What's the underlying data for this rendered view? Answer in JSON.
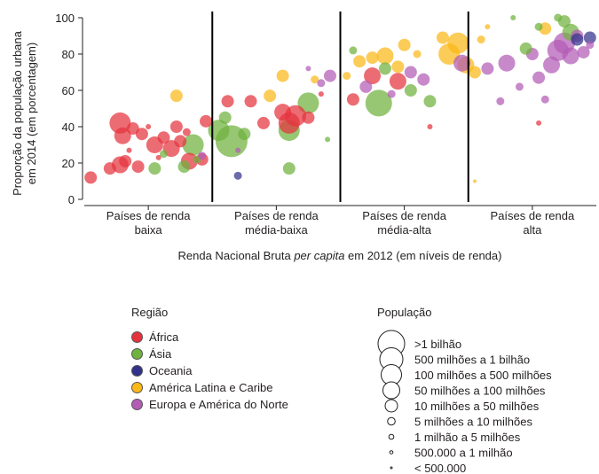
{
  "chart_data": {
    "type": "scatter",
    "ylabel_line1": "Proporção da população urbana",
    "ylabel_line2": "em 2014 (em porcentagem)",
    "xlabel_parts": [
      "Renda Nacional Bruta ",
      "per capita",
      " em 2012 (em níveis de renda)"
    ],
    "ylim": [
      0,
      100
    ],
    "yticks": [
      "0",
      "20",
      "40",
      "60",
      "80",
      "100"
    ],
    "xlim": [
      0,
      4
    ],
    "income_groups": [
      {
        "line1": "Países de renda",
        "line2": "baixa",
        "center": 0.5
      },
      {
        "line1": "Países de renda",
        "line2": "média-baixa",
        "center": 1.5
      },
      {
        "line1": "Países de renda",
        "line2": "média-alta",
        "center": 2.5
      },
      {
        "line1": "Países de renda",
        "line2": "alta",
        "center": 3.5
      }
    ],
    "dividers": [
      1,
      2,
      3
    ],
    "region_title": "Região",
    "regions": [
      {
        "key": "africa",
        "label": "África",
        "color": "#e5333d"
      },
      {
        "key": "asia",
        "label": "Ásia",
        "color": "#6fb23d"
      },
      {
        "key": "oceania",
        "label": "Oceania",
        "color": "#32328c"
      },
      {
        "key": "latam",
        "label": "América Latina e Caribe",
        "color": "#fbb817"
      },
      {
        "key": "europe",
        "label": "Europa e América do Norte",
        "color": "#b35cb5"
      }
    ],
    "population_title": "População",
    "population_classes": [
      {
        "label": ">1 bilhão",
        "size": 9
      },
      {
        "label": "500 milhões a 1 bilhão",
        "size": 8
      },
      {
        "label": "100 milhões a 500 milhões",
        "size": 7
      },
      {
        "label": "50 milhões a 100 milhões",
        "size": 6
      },
      {
        "label": "10 milhões a 50 milhões",
        "size": 5
      },
      {
        "label": "5 milhões a 10 milhões",
        "size": 4
      },
      {
        "label": "1 milhão a 5 milhões",
        "size": 3
      },
      {
        "label": "500.000 a 1 milhão",
        "size": 2
      },
      {
        "label": "< 500.000",
        "size": 1
      }
    ],
    "points": [
      {
        "r": "africa",
        "x": 0.05,
        "y": 12,
        "s": 5
      },
      {
        "r": "africa",
        "x": 0.2,
        "y": 17,
        "s": 5
      },
      {
        "r": "africa",
        "x": 0.28,
        "y": 19,
        "s": 6
      },
      {
        "r": "africa",
        "x": 0.32,
        "y": 21,
        "s": 5
      },
      {
        "r": "africa",
        "x": 0.3,
        "y": 35,
        "s": 6
      },
      {
        "r": "africa",
        "x": 0.38,
        "y": 39,
        "s": 5
      },
      {
        "r": "africa",
        "x": 0.45,
        "y": 36,
        "s": 5
      },
      {
        "r": "africa",
        "x": 0.28,
        "y": 42,
        "s": 7
      },
      {
        "r": "africa",
        "x": 0.55,
        "y": 30,
        "s": 6
      },
      {
        "r": "africa",
        "x": 0.62,
        "y": 34,
        "s": 5
      },
      {
        "r": "africa",
        "x": 0.68,
        "y": 28,
        "s": 6
      },
      {
        "r": "africa",
        "x": 0.72,
        "y": 40,
        "s": 5
      },
      {
        "r": "africa",
        "x": 0.75,
        "y": 32,
        "s": 5
      },
      {
        "r": "africa",
        "x": 0.82,
        "y": 21,
        "s": 6
      },
      {
        "r": "africa",
        "x": 0.92,
        "y": 22,
        "s": 5
      },
      {
        "r": "africa",
        "x": 0.95,
        "y": 43,
        "s": 5
      },
      {
        "r": "africa",
        "x": 0.5,
        "y": 40,
        "s": 3
      },
      {
        "r": "africa",
        "x": 0.8,
        "y": 37,
        "s": 4
      },
      {
        "r": "africa",
        "x": 0.42,
        "y": 18,
        "s": 5
      },
      {
        "r": "africa",
        "x": 0.58,
        "y": 23,
        "s": 3
      },
      {
        "r": "africa",
        "x": 0.35,
        "y": 27,
        "s": 3
      },
      {
        "r": "asia",
        "x": 0.55,
        "y": 17,
        "s": 5
      },
      {
        "r": "asia",
        "x": 0.78,
        "y": 18,
        "s": 5
      },
      {
        "r": "asia",
        "x": 0.85,
        "y": 30,
        "s": 7
      },
      {
        "r": "asia",
        "x": 0.88,
        "y": 22,
        "s": 4
      },
      {
        "r": "asia",
        "x": 0.62,
        "y": 25,
        "s": 4
      },
      {
        "r": "latam",
        "x": 0.72,
        "y": 57,
        "s": 5
      },
      {
        "r": "europe",
        "x": 0.92,
        "y": 24,
        "s": 4
      },
      {
        "r": "asia",
        "x": 1.15,
        "y": 32,
        "s": 9
      },
      {
        "r": "asia",
        "x": 1.05,
        "y": 38,
        "s": 7
      },
      {
        "r": "asia",
        "x": 1.25,
        "y": 36,
        "s": 5
      },
      {
        "r": "asia",
        "x": 1.1,
        "y": 45,
        "s": 5
      },
      {
        "r": "asia",
        "x": 1.6,
        "y": 38,
        "s": 7
      },
      {
        "r": "asia",
        "x": 1.75,
        "y": 53,
        "s": 7
      },
      {
        "r": "asia",
        "x": 1.6,
        "y": 17,
        "s": 5
      },
      {
        "r": "asia",
        "x": 1.9,
        "y": 33,
        "s": 3
      },
      {
        "r": "africa",
        "x": 1.12,
        "y": 54,
        "s": 5
      },
      {
        "r": "africa",
        "x": 1.3,
        "y": 54,
        "s": 5
      },
      {
        "r": "africa",
        "x": 1.4,
        "y": 42,
        "s": 5
      },
      {
        "r": "africa",
        "x": 1.6,
        "y": 42,
        "s": 7
      },
      {
        "r": "africa",
        "x": 1.65,
        "y": 46,
        "s": 7
      },
      {
        "r": "africa",
        "x": 1.55,
        "y": 48,
        "s": 6
      },
      {
        "r": "africa",
        "x": 1.75,
        "y": 45,
        "s": 5
      },
      {
        "r": "africa",
        "x": 1.85,
        "y": 58,
        "s": 3
      },
      {
        "r": "oceania",
        "x": 1.2,
        "y": 13,
        "s": 4
      },
      {
        "r": "latam",
        "x": 1.55,
        "y": 68,
        "s": 5
      },
      {
        "r": "latam",
        "x": 1.45,
        "y": 57,
        "s": 5
      },
      {
        "r": "latam",
        "x": 1.8,
        "y": 66,
        "s": 4
      },
      {
        "r": "europe",
        "x": 1.92,
        "y": 68,
        "s": 5
      },
      {
        "r": "europe",
        "x": 1.75,
        "y": 72,
        "s": 3
      },
      {
        "r": "europe",
        "x": 1.2,
        "y": 27,
        "s": 3
      },
      {
        "r": "europe",
        "x": 1.85,
        "y": 64,
        "s": 4
      },
      {
        "r": "asia",
        "x": 2.3,
        "y": 53,
        "s": 8
      },
      {
        "r": "asia",
        "x": 2.1,
        "y": 82,
        "s": 4
      },
      {
        "r": "asia",
        "x": 2.35,
        "y": 72,
        "s": 5
      },
      {
        "r": "asia",
        "x": 2.55,
        "y": 60,
        "s": 5
      },
      {
        "r": "asia",
        "x": 2.7,
        "y": 54,
        "s": 5
      },
      {
        "r": "africa",
        "x": 2.25,
        "y": 68,
        "s": 6
      },
      {
        "r": "africa",
        "x": 2.45,
        "y": 65,
        "s": 6
      },
      {
        "r": "africa",
        "x": 2.1,
        "y": 55,
        "s": 5
      },
      {
        "r": "latam",
        "x": 2.15,
        "y": 76,
        "s": 5
      },
      {
        "r": "latam",
        "x": 2.25,
        "y": 78,
        "s": 5
      },
      {
        "r": "latam",
        "x": 2.35,
        "y": 79,
        "s": 6
      },
      {
        "r": "latam",
        "x": 2.45,
        "y": 73,
        "s": 5
      },
      {
        "r": "latam",
        "x": 2.5,
        "y": 85,
        "s": 5
      },
      {
        "r": "latam",
        "x": 2.6,
        "y": 80,
        "s": 4
      },
      {
        "r": "latam",
        "x": 2.85,
        "y": 80,
        "s": 7
      },
      {
        "r": "latam",
        "x": 2.92,
        "y": 86,
        "s": 7
      },
      {
        "r": "latam",
        "x": 2.98,
        "y": 74,
        "s": 6
      },
      {
        "r": "latam",
        "x": 2.8,
        "y": 89,
        "s": 5
      },
      {
        "r": "latam",
        "x": 2.05,
        "y": 68,
        "s": 4
      },
      {
        "r": "europe",
        "x": 2.2,
        "y": 62,
        "s": 5
      },
      {
        "r": "europe",
        "x": 2.55,
        "y": 70,
        "s": 5
      },
      {
        "r": "europe",
        "x": 2.65,
        "y": 66,
        "s": 5
      },
      {
        "r": "europe",
        "x": 2.95,
        "y": 75,
        "s": 6
      },
      {
        "r": "europe",
        "x": 2.4,
        "y": 58,
        "s": 4
      },
      {
        "r": "africa",
        "x": 2.7,
        "y": 40,
        "s": 3
      },
      {
        "r": "latam",
        "x": 3.1,
        "y": 88,
        "s": 4
      },
      {
        "r": "latam",
        "x": 3.05,
        "y": 70,
        "s": 5
      },
      {
        "r": "latam",
        "x": 3.6,
        "y": 94,
        "s": 5
      },
      {
        "r": "europe",
        "x": 3.15,
        "y": 72,
        "s": 5
      },
      {
        "r": "europe",
        "x": 3.3,
        "y": 75,
        "s": 6
      },
      {
        "r": "europe",
        "x": 3.5,
        "y": 80,
        "s": 5
      },
      {
        "r": "europe",
        "x": 3.7,
        "y": 82,
        "s": 7
      },
      {
        "r": "europe",
        "x": 3.75,
        "y": 86,
        "s": 7
      },
      {
        "r": "europe",
        "x": 3.8,
        "y": 79,
        "s": 6
      },
      {
        "r": "europe",
        "x": 3.65,
        "y": 74,
        "s": 6
      },
      {
        "r": "europe",
        "x": 3.9,
        "y": 81,
        "s": 5
      },
      {
        "r": "europe",
        "x": 3.55,
        "y": 67,
        "s": 5
      },
      {
        "r": "europe",
        "x": 3.25,
        "y": 54,
        "s": 4
      },
      {
        "r": "europe",
        "x": 3.85,
        "y": 90,
        "s": 5
      },
      {
        "r": "europe",
        "x": 3.95,
        "y": 85,
        "s": 4
      },
      {
        "r": "europe",
        "x": 3.4,
        "y": 62,
        "s": 4
      },
      {
        "r": "europe",
        "x": 3.6,
        "y": 55,
        "s": 4
      },
      {
        "r": "asia",
        "x": 3.45,
        "y": 83,
        "s": 5
      },
      {
        "r": "asia",
        "x": 3.8,
        "y": 92,
        "s": 6
      },
      {
        "r": "asia",
        "x": 3.75,
        "y": 98,
        "s": 5
      },
      {
        "r": "asia",
        "x": 3.55,
        "y": 95,
        "s": 4
      },
      {
        "r": "asia",
        "x": 3.35,
        "y": 100,
        "s": 3
      },
      {
        "r": "asia",
        "x": 3.7,
        "y": 100,
        "s": 4
      },
      {
        "r": "oceania",
        "x": 3.85,
        "y": 88,
        "s": 5
      },
      {
        "r": "oceania",
        "x": 3.95,
        "y": 89,
        "s": 5
      },
      {
        "r": "latam",
        "x": 3.15,
        "y": 95,
        "s": 3
      },
      {
        "r": "latam",
        "x": 3.05,
        "y": 10,
        "s": 2
      },
      {
        "r": "africa",
        "x": 3.55,
        "y": 42,
        "s": 3
      }
    ]
  }
}
